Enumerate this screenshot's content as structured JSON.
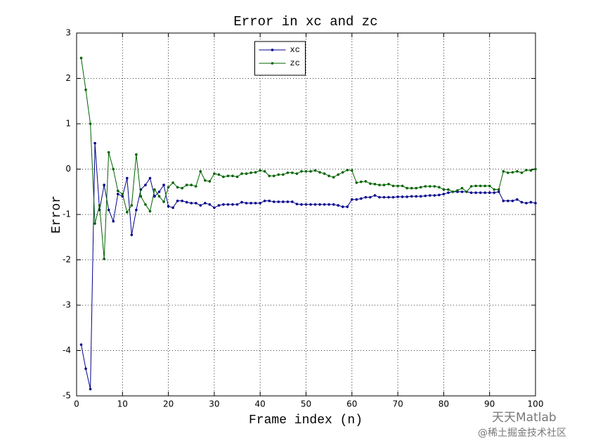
{
  "chart_data": {
    "type": "line",
    "title": "Error in xc and zc",
    "xlabel": "Frame index (n)",
    "ylabel": "Error",
    "x": [
      1,
      2,
      3,
      4,
      5,
      6,
      7,
      8,
      9,
      10,
      11,
      12,
      13,
      14,
      15,
      16,
      17,
      18,
      19,
      20,
      21,
      22,
      23,
      24,
      25,
      26,
      27,
      28,
      29,
      30,
      31,
      32,
      33,
      34,
      35,
      36,
      37,
      38,
      39,
      40,
      41,
      42,
      43,
      44,
      45,
      46,
      47,
      48,
      49,
      50,
      51,
      52,
      53,
      54,
      55,
      56,
      57,
      58,
      59,
      60,
      61,
      62,
      63,
      64,
      65,
      66,
      67,
      68,
      69,
      70,
      71,
      72,
      73,
      74,
      75,
      76,
      77,
      78,
      79,
      80,
      81,
      82,
      83,
      84,
      85,
      86,
      87,
      88,
      89,
      90,
      91,
      92,
      93,
      94,
      95,
      96,
      97,
      98,
      99,
      100
    ],
    "series": [
      {
        "name": "xc",
        "color": "#00008b",
        "values": [
          -3.87,
          -4.4,
          -4.85,
          0.57,
          -0.9,
          -0.35,
          -0.9,
          -1.15,
          -0.55,
          -0.6,
          -0.2,
          -1.45,
          -0.9,
          -0.45,
          -0.35,
          -0.2,
          -0.6,
          -0.5,
          -0.35,
          -0.82,
          -0.85,
          -0.7,
          -0.7,
          -0.73,
          -0.75,
          -0.75,
          -0.8,
          -0.75,
          -0.78,
          -0.85,
          -0.8,
          -0.78,
          -0.78,
          -0.78,
          -0.78,
          -0.73,
          -0.75,
          -0.75,
          -0.75,
          -0.75,
          -0.7,
          -0.7,
          -0.72,
          -0.72,
          -0.72,
          -0.72,
          -0.72,
          -0.77,
          -0.78,
          -0.78,
          -0.78,
          -0.78,
          -0.78,
          -0.78,
          -0.78,
          -0.78,
          -0.8,
          -0.83,
          -0.83,
          -0.67,
          -0.67,
          -0.65,
          -0.62,
          -0.62,
          -0.58,
          -0.62,
          -0.62,
          -0.62,
          -0.62,
          -0.61,
          -0.61,
          -0.61,
          -0.6,
          -0.6,
          -0.6,
          -0.59,
          -0.58,
          -0.58,
          -0.57,
          -0.55,
          -0.52,
          -0.5,
          -0.5,
          -0.5,
          -0.5,
          -0.52,
          -0.52,
          -0.52,
          -0.52,
          -0.52,
          -0.52,
          -0.5,
          -0.7,
          -0.7,
          -0.7,
          -0.67,
          -0.73,
          -0.75,
          -0.73,
          -0.75
        ]
      },
      {
        "name": "zc",
        "color": "#006400",
        "values": [
          2.45,
          1.75,
          1.0,
          -1.2,
          -0.8,
          -1.98,
          0.37,
          0.0,
          -0.48,
          -0.55,
          -0.95,
          -0.8,
          0.32,
          -0.6,
          -0.78,
          -0.93,
          -0.45,
          -0.6,
          -0.72,
          -0.4,
          -0.3,
          -0.4,
          -0.42,
          -0.35,
          -0.35,
          -0.38,
          -0.05,
          -0.25,
          -0.27,
          -0.1,
          -0.12,
          -0.17,
          -0.15,
          -0.15,
          -0.17,
          -0.1,
          -0.1,
          -0.08,
          -0.07,
          -0.03,
          -0.05,
          -0.15,
          -0.15,
          -0.12,
          -0.12,
          -0.08,
          -0.08,
          -0.1,
          -0.05,
          -0.05,
          -0.05,
          -0.03,
          -0.07,
          -0.1,
          -0.15,
          -0.18,
          -0.12,
          -0.07,
          -0.02,
          -0.03,
          -0.3,
          -0.28,
          -0.27,
          -0.32,
          -0.33,
          -0.35,
          -0.35,
          -0.33,
          -0.37,
          -0.37,
          -0.37,
          -0.42,
          -0.42,
          -0.42,
          -0.4,
          -0.38,
          -0.38,
          -0.38,
          -0.4,
          -0.45,
          -0.45,
          -0.5,
          -0.47,
          -0.42,
          -0.5,
          -0.38,
          -0.37,
          -0.37,
          -0.37,
          -0.37,
          -0.45,
          -0.45,
          -0.05,
          -0.08,
          -0.07,
          -0.05,
          -0.08,
          -0.02,
          -0.03,
          0.0
        ]
      }
    ],
    "xlim": [
      0,
      100
    ],
    "xticks": [
      0,
      10,
      20,
      30,
      40,
      50,
      60,
      70,
      80,
      90,
      100
    ],
    "ylim": [
      -5,
      3
    ],
    "yticks": [
      -5,
      -4,
      -3,
      -2,
      -1,
      0,
      1,
      2,
      3
    ],
    "grid": true,
    "legend": "north"
  },
  "watermark": {
    "line1": "天天Matlab",
    "line2": "@稀土掘金技术社区"
  }
}
